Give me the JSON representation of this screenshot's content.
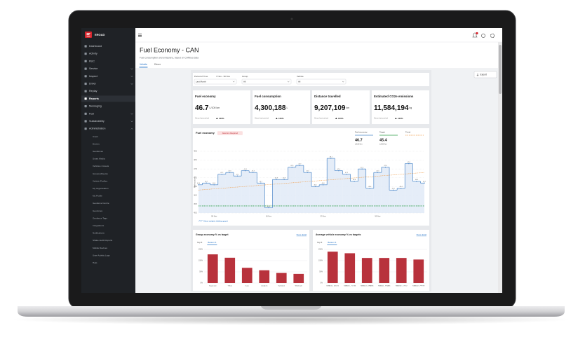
{
  "sidebar": {
    "brand": "EROAD",
    "menu": [
      {
        "label": "Dashboard"
      },
      {
        "label": "Activity"
      },
      {
        "label": "RUC"
      },
      {
        "label": "Service",
        "expandable": true
      },
      {
        "label": "Inspect",
        "expandable": true
      },
      {
        "label": "Driver",
        "expandable": true
      },
      {
        "label": "Replay"
      },
      {
        "label": "Reports",
        "active": true
      },
      {
        "label": "Messaging"
      },
      {
        "label": "Fuel",
        "expandable": true
      },
      {
        "label": "Sustainability",
        "expandable": true
      },
      {
        "label": "Administration",
        "expandable": true,
        "expanded": true
      }
    ],
    "admin_items": [
      "Users",
      "Drivers",
      "Geofences",
      "Smart Media",
      "Vehicles / Assets",
      "Groups (Fleets)",
      "Vehicle Profiles",
      "My Organisation",
      "My Profile",
      "Geofence Centre",
      "Geozones",
      "Geofence Tags",
      "Integrations",
      "Notifications",
      "Shake Audit Reports",
      "Mobile Devices",
      "User Activity Logs",
      "Help"
    ]
  },
  "header": {
    "title": "Fuel Economy - CAN",
    "subtitle": "Fuel consumption and emissions, based on CANbus data",
    "tabs": [
      {
        "label": "Vehicle",
        "active": true
      },
      {
        "label": "Driver"
      }
    ],
    "export": "Export"
  },
  "filters": [
    {
      "label": "Period of Time",
      "extra": "7 Nov - 30 Nov",
      "value": "Last Month"
    },
    {
      "label": "Group",
      "value": "All"
    },
    {
      "label": "Vehicle",
      "value": "All"
    }
  ],
  "kpis": [
    {
      "title": "Fuel economy",
      "value": "46.7",
      "unit": "L/100 km",
      "note": "Since last period",
      "change": "100%"
    },
    {
      "title": "Fuel consumption",
      "value": "4,300,188",
      "unit": "L",
      "note": "Since last period",
      "change": "100%"
    },
    {
      "title": "Distance travelled",
      "value": "9,207,109",
      "unit": "km",
      "note": "Since last period",
      "change": "100%"
    },
    {
      "title": "Estimated CO2e emissions",
      "value": "11,584,194",
      "unit": "kg",
      "note": "Since last period",
      "change": "100%"
    }
  ],
  "fuel_chart": {
    "type": "line",
    "title": "Fuel economy",
    "badge": "Attention Required",
    "y_label": "Fuel economy",
    "legend": [
      {
        "name": "Fuel economy",
        "value": "46.7",
        "unit": "L/100 km",
        "color": "#4a86c8"
      },
      {
        "name": "Target",
        "unit": "L/100 km",
        "color": "#2e9e48"
      },
      {
        "name": "Trend",
        "color": "#f0a050"
      }
    ],
    "categories": [
      null,
      null,
      "09 Nov",
      null,
      null,
      null,
      null,
      null,
      null,
      "16 Nov",
      null,
      null,
      null,
      null,
      null,
      null,
      "23 Nov",
      null,
      null,
      null,
      null,
      null,
      null,
      "30 Nov",
      null,
      null,
      null,
      null,
      null,
      null
    ],
    "values": [
      46.6,
      46.7,
      46.6,
      47.2,
      47.3,
      47.1,
      47.4,
      47.3,
      46.7,
      45.3,
      46.9,
      46.9,
      47.6,
      47.7,
      47.3,
      46.5,
      46.6,
      48.1,
      47.4,
      47.2,
      46.8,
      47.5,
      46.4,
      47.3,
      47.6,
      46.3,
      46.4,
      47.8,
      46.8,
      46.7
    ],
    "target": 45.4,
    "trend": [
      46.3,
      47.3
    ],
    "color": "#4a86c8",
    "ylim": [
      45,
      48.5
    ],
    "yticks": [
      {
        "value": 45,
        "label": "45.0"
      },
      45.5,
      {
        "value": 46,
        "label": "46.0"
      },
      46.5,
      {
        "value": 47,
        "label": "47.0"
      },
      47.5,
      {
        "value": 48,
        "label": "48.0"
      },
      48.5
    ],
    "grid": true,
    "footer": "Show weights (sliding gaps)"
  },
  "group_chart": {
    "type": "bar",
    "title": "Group economy % vs target",
    "link": "View detail",
    "tabs": [
      {
        "label": "Top 5"
      },
      {
        "label": "Bottom 5",
        "active": true
      }
    ],
    "categories": [
      "Sugarcane",
      "Yellow",
      "Isuzu",
      "Longburn",
      "Sanitation",
      "Wholesale"
    ],
    "values": [
      128,
      113,
      68,
      57,
      45,
      41
    ],
    "color": "#b8323c",
    "ylim": [
      0,
      150
    ],
    "yticks": [
      {
        "value": 0,
        "label": "0%"
      },
      {
        "value": 50,
        "label": "50%"
      },
      {
        "value": 100,
        "label": "100%"
      },
      {
        "value": 150,
        "label": "150%"
      }
    ],
    "grid": true
  },
  "vehicle_chart": {
    "type": "bar",
    "title": "Average vehicle economy % vs targets",
    "link": "View detail",
    "tabs": [
      {
        "label": "Top 5"
      },
      {
        "label": "Bottom 5",
        "active": true
      }
    ],
    "categories": [
      "KMB215 - UKC72",
      "KMB216 - TCT36",
      "KMB213 - KFA835",
      "KMB211 - FIVA35",
      "KMB230 - LTV72",
      "KMB232 - FPT79"
    ],
    "values": [
      140,
      133,
      112,
      112,
      112,
      105
    ],
    "color": "#b8323c",
    "ylim": [
      0,
      150
    ],
    "yticks": [
      {
        "value": 0,
        "label": "0%"
      },
      {
        "value": 50,
        "label": "50%"
      },
      {
        "value": 100,
        "label": "100%"
      },
      {
        "value": 150,
        "label": "150%"
      }
    ],
    "grid": true
  }
}
